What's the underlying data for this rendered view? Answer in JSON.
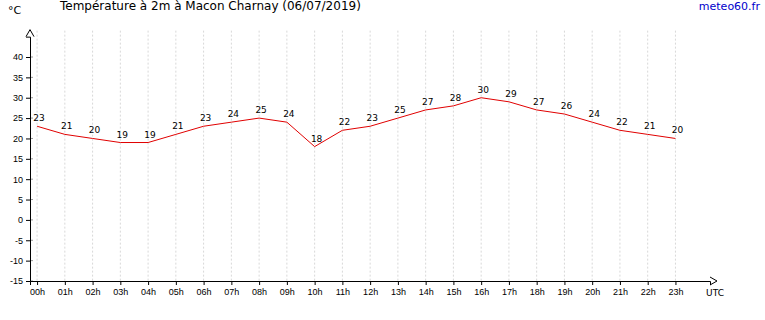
{
  "chart_data": {
    "type": "line",
    "title": "Température à 2m à Macon Charnay (06/07/2019)",
    "source": "meteo60.fr",
    "y_label": "°C",
    "x_label": "UTC",
    "categories": [
      "00h",
      "01h",
      "02h",
      "03h",
      "04h",
      "05h",
      "06h",
      "07h",
      "08h",
      "09h",
      "10h",
      "11h",
      "12h",
      "13h",
      "14h",
      "15h",
      "16h",
      "17h",
      "18h",
      "19h",
      "20h",
      "21h",
      "22h",
      "23h"
    ],
    "values": [
      23,
      21,
      20,
      19,
      19,
      21,
      23,
      24,
      25,
      24,
      18,
      22,
      23,
      25,
      27,
      28,
      30,
      29,
      27,
      26,
      24,
      22,
      21,
      20
    ],
    "color": "#e00000",
    "ylim": [
      -15,
      45
    ],
    "yticks": [
      -15,
      -10,
      -5,
      0,
      5,
      10,
      15,
      20,
      25,
      30,
      35,
      40
    ],
    "grid": true,
    "data_labels": true
  }
}
